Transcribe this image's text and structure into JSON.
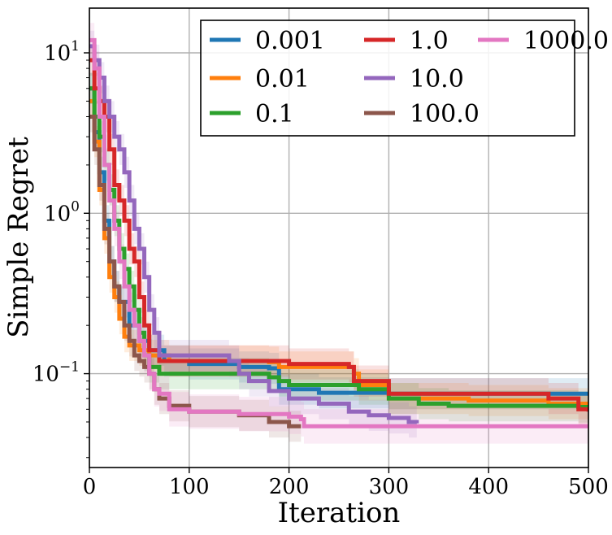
{
  "chart_data": {
    "type": "line",
    "title": "",
    "xlabel": "Iteration",
    "ylabel": "Simple Regret",
    "x_scale": "linear",
    "y_scale": "log",
    "xlim": [
      0,
      500
    ],
    "ylim": [
      0.026,
      19
    ],
    "x_ticks": [
      0,
      100,
      200,
      300,
      400,
      500
    ],
    "x_tick_labels": [
      "0",
      "100",
      "200",
      "300",
      "400",
      "500"
    ],
    "y_ticks": [
      0.1,
      1,
      10
    ],
    "y_tick_labels": [
      "10",
      "10",
      "10"
    ],
    "y_tick_exponents": [
      "−1",
      "0",
      "1"
    ],
    "grid": true,
    "legend": {
      "placement": "top-right",
      "columns": 3
    },
    "series": [
      {
        "name": "0.001",
        "color": "#1f77b4",
        "points": [
          [
            0,
            6
          ],
          [
            5,
            3.2
          ],
          [
            10,
            1.8
          ],
          [
            15,
            0.9
          ],
          [
            20,
            0.5
          ],
          [
            25,
            0.35
          ],
          [
            30,
            0.28
          ],
          [
            40,
            0.2
          ],
          [
            50,
            0.16
          ],
          [
            60,
            0.14
          ],
          [
            75,
            0.12
          ],
          [
            100,
            0.115
          ],
          [
            150,
            0.11
          ],
          [
            180,
            0.108
          ],
          [
            190,
            0.08
          ],
          [
            230,
            0.076
          ],
          [
            300,
            0.075
          ],
          [
            500,
            0.075
          ]
        ],
        "band": [
          0.8,
          1.25
        ]
      },
      {
        "name": "0.01",
        "color": "#ff7f0e",
        "points": [
          [
            0,
            5
          ],
          [
            5,
            2.8
          ],
          [
            10,
            1.4
          ],
          [
            15,
            0.7
          ],
          [
            20,
            0.4
          ],
          [
            25,
            0.3
          ],
          [
            30,
            0.22
          ],
          [
            35,
            0.17
          ],
          [
            40,
            0.15
          ],
          [
            50,
            0.14
          ],
          [
            60,
            0.13
          ],
          [
            80,
            0.12
          ],
          [
            150,
            0.12
          ],
          [
            180,
            0.118
          ],
          [
            190,
            0.11
          ],
          [
            265,
            0.1
          ],
          [
            270,
            0.085
          ],
          [
            300,
            0.07
          ],
          [
            380,
            0.068
          ],
          [
            460,
            0.065
          ],
          [
            500,
            0.065
          ]
        ],
        "band": [
          0.8,
          1.25
        ]
      },
      {
        "name": "0.1",
        "color": "#2ca02c",
        "points": [
          [
            0,
            6
          ],
          [
            5,
            4
          ],
          [
            10,
            3
          ],
          [
            15,
            2
          ],
          [
            20,
            1.4
          ],
          [
            25,
            0.9
          ],
          [
            30,
            0.6
          ],
          [
            35,
            0.45
          ],
          [
            40,
            0.35
          ],
          [
            45,
            0.25
          ],
          [
            50,
            0.18
          ],
          [
            55,
            0.13
          ],
          [
            60,
            0.11
          ],
          [
            70,
            0.1
          ],
          [
            150,
            0.1
          ],
          [
            180,
            0.095
          ],
          [
            190,
            0.09
          ],
          [
            200,
            0.085
          ],
          [
            270,
            0.08
          ],
          [
            300,
            0.07
          ],
          [
            330,
            0.065
          ],
          [
            360,
            0.063
          ],
          [
            450,
            0.063
          ],
          [
            490,
            0.062
          ],
          [
            500,
            0.062
          ]
        ],
        "band": [
          0.8,
          1.25
        ]
      },
      {
        "name": "1.0",
        "color": "#d62728",
        "points": [
          [
            0,
            9
          ],
          [
            5,
            6
          ],
          [
            10,
            5
          ],
          [
            15,
            4
          ],
          [
            20,
            2.5
          ],
          [
            25,
            1.5
          ],
          [
            30,
            1.2
          ],
          [
            35,
            0.9
          ],
          [
            40,
            0.6
          ],
          [
            45,
            0.5
          ],
          [
            50,
            0.3
          ],
          [
            55,
            0.2
          ],
          [
            60,
            0.14
          ],
          [
            70,
            0.12
          ],
          [
            150,
            0.12
          ],
          [
            200,
            0.115
          ],
          [
            260,
            0.11
          ],
          [
            265,
            0.09
          ],
          [
            300,
            0.075
          ],
          [
            440,
            0.075
          ],
          [
            460,
            0.07
          ],
          [
            490,
            0.06
          ],
          [
            500,
            0.058
          ]
        ],
        "band": [
          0.8,
          1.25
        ]
      },
      {
        "name": "10.0",
        "color": "#9467bd",
        "points": [
          [
            0,
            11
          ],
          [
            5,
            9
          ],
          [
            10,
            7
          ],
          [
            15,
            5
          ],
          [
            20,
            4
          ],
          [
            25,
            3
          ],
          [
            30,
            2.5
          ],
          [
            35,
            1.8
          ],
          [
            40,
            1.2
          ],
          [
            45,
            0.8
          ],
          [
            50,
            0.6
          ],
          [
            55,
            0.4
          ],
          [
            60,
            0.25
          ],
          [
            65,
            0.18
          ],
          [
            70,
            0.13
          ],
          [
            100,
            0.13
          ],
          [
            140,
            0.12
          ],
          [
            150,
            0.1
          ],
          [
            160,
            0.09
          ],
          [
            180,
            0.078
          ],
          [
            200,
            0.07
          ],
          [
            230,
            0.065
          ],
          [
            260,
            0.058
          ],
          [
            280,
            0.055
          ],
          [
            300,
            0.053
          ],
          [
            320,
            0.05
          ],
          [
            328,
            0.049
          ]
        ],
        "band": [
          0.8,
          1.25
        ]
      },
      {
        "name": "100.0",
        "color": "#8c564b",
        "points": [
          [
            0,
            4
          ],
          [
            5,
            2.5
          ],
          [
            10,
            1.5
          ],
          [
            15,
            0.8
          ],
          [
            20,
            0.5
          ],
          [
            25,
            0.35
          ],
          [
            30,
            0.28
          ],
          [
            35,
            0.2
          ],
          [
            40,
            0.16
          ],
          [
            45,
            0.13
          ],
          [
            50,
            0.12
          ],
          [
            55,
            0.11
          ],
          [
            60,
            0.1
          ],
          [
            65,
            0.08
          ],
          [
            70,
            0.07
          ],
          [
            80,
            0.063
          ],
          [
            100,
            0.058
          ],
          [
            150,
            0.055
          ],
          [
            180,
            0.05
          ],
          [
            200,
            0.047
          ],
          [
            212,
            0.047
          ]
        ],
        "band": [
          0.8,
          1.25
        ]
      },
      {
        "name": "1000.0",
        "color": "#e377c2",
        "points": [
          [
            0,
            12
          ],
          [
            5,
            8
          ],
          [
            10,
            4
          ],
          [
            15,
            2
          ],
          [
            20,
            1.2
          ],
          [
            25,
            0.8
          ],
          [
            30,
            0.5
          ],
          [
            35,
            0.35
          ],
          [
            40,
            0.25
          ],
          [
            45,
            0.2
          ],
          [
            50,
            0.16
          ],
          [
            55,
            0.13
          ],
          [
            60,
            0.1
          ],
          [
            65,
            0.08
          ],
          [
            70,
            0.075
          ],
          [
            80,
            0.06
          ],
          [
            100,
            0.058
          ],
          [
            150,
            0.056
          ],
          [
            200,
            0.054
          ],
          [
            212,
            0.052
          ],
          [
            215,
            0.047
          ],
          [
            500,
            0.047
          ]
        ],
        "band": [
          0.78,
          1.28
        ]
      }
    ]
  }
}
